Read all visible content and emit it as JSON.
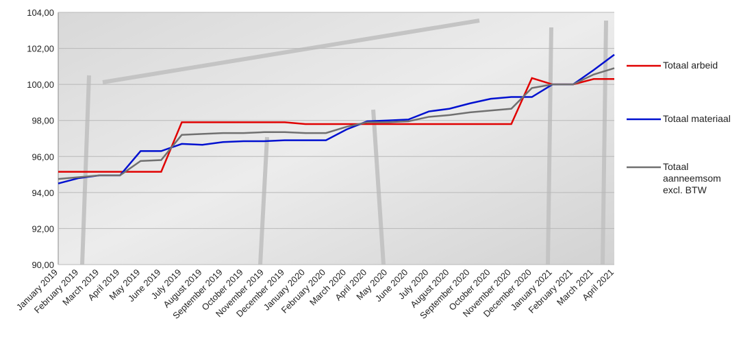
{
  "chart_data": {
    "type": "line",
    "categories": [
      "January 2019",
      "February 2019",
      "March 2019",
      "April 2019",
      "May 2019",
      "June 2019",
      "July 2019",
      "August 2019",
      "September 2019",
      "October 2019",
      "November 2019",
      "December 2019",
      "January 2020",
      "February 2020",
      "March 2020",
      "April 2020",
      "May 2020",
      "June 2020",
      "July 2020",
      "August 2020",
      "September 2020",
      "October 2020",
      "November 2020",
      "December 2020",
      "January 2021",
      "February 2021",
      "March 2021",
      "April 2021"
    ],
    "series": [
      {
        "name": "Totaal arbeid",
        "color": "#e00000",
        "values": [
          95.15,
          95.15,
          95.15,
          95.15,
          95.15,
          95.15,
          97.9,
          97.9,
          97.9,
          97.9,
          97.9,
          97.9,
          97.8,
          97.8,
          97.8,
          97.8,
          97.8,
          97.8,
          97.8,
          97.8,
          97.8,
          97.8,
          97.8,
          100.35,
          100.0,
          100.0,
          100.3,
          100.3
        ]
      },
      {
        "name": "Totaal materiaal",
        "color": "#0010d0",
        "values": [
          94.5,
          94.8,
          94.95,
          94.95,
          96.3,
          96.3,
          96.7,
          96.65,
          96.8,
          96.85,
          96.85,
          96.9,
          96.9,
          96.9,
          97.5,
          97.95,
          98.0,
          98.05,
          98.5,
          98.65,
          98.95,
          99.2,
          99.3,
          99.3,
          100.0,
          100.0,
          100.8,
          101.65
        ]
      },
      {
        "name": "Totaal aanneemsom excl. BTW",
        "color": "#707070",
        "values": [
          94.75,
          94.85,
          94.95,
          94.95,
          95.75,
          95.8,
          97.2,
          97.25,
          97.3,
          97.3,
          97.35,
          97.35,
          97.3,
          97.3,
          97.65,
          97.9,
          97.9,
          97.95,
          98.2,
          98.3,
          98.45,
          98.55,
          98.65,
          99.8,
          100.0,
          100.0,
          100.55,
          100.9
        ]
      }
    ],
    "ylim": [
      90,
      104
    ],
    "yticks": [
      {
        "value": 90,
        "label": "90,00"
      },
      {
        "value": 92,
        "label": "92,00"
      },
      {
        "value": 94,
        "label": "94,00"
      },
      {
        "value": 96,
        "label": "96,00"
      },
      {
        "value": 98,
        "label": "98,00"
      },
      {
        "value": 100,
        "label": "100,00"
      },
      {
        "value": 102,
        "label": "102,00"
      },
      {
        "value": 104,
        "label": "104,00"
      }
    ],
    "grid": true,
    "legend": "right"
  }
}
